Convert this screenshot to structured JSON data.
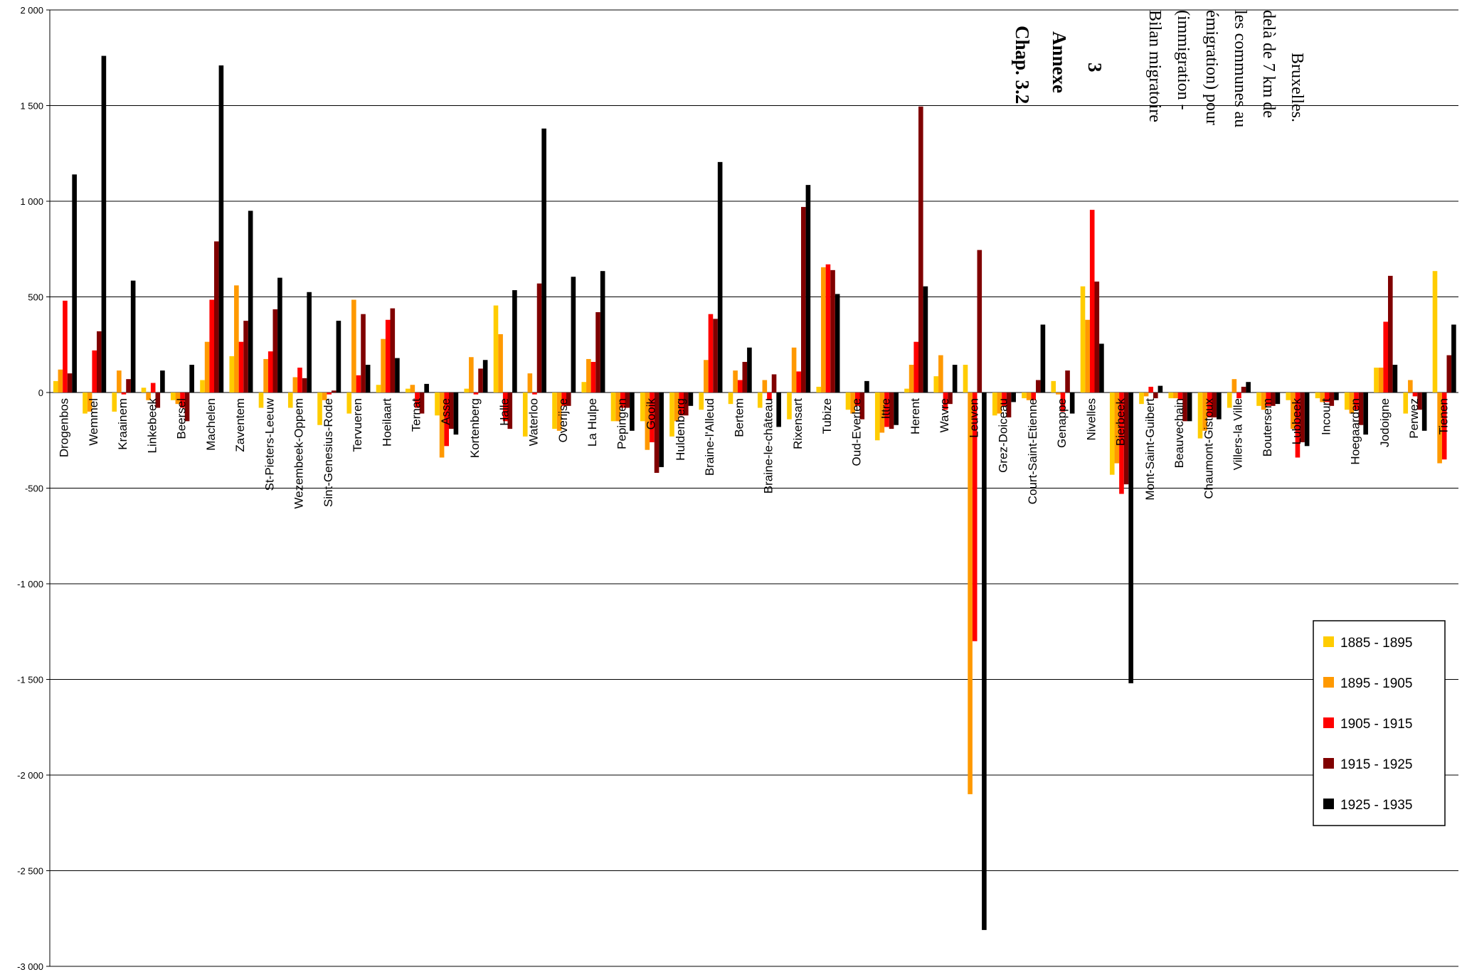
{
  "chart_data": {
    "type": "bar",
    "title_lines": [
      "Chap. 3.2",
      "Annexe",
      "3"
    ],
    "subtitle_lines": [
      "Bilan migratoire",
      "(immigration -",
      "émigration) pour",
      "les communes au",
      "delà de 7 km de",
      "Bruxelles."
    ],
    "xlabel": "",
    "ylabel": "",
    "ylim": [
      -3000,
      2000
    ],
    "yticks": [
      2000,
      1500,
      1000,
      500,
      0,
      -500,
      -1000,
      -1500,
      -2000,
      -2500,
      -3000
    ],
    "ytick_labels": [
      "2 000",
      "1 500",
      "1 000",
      "500",
      "0",
      "-500",
      "-1 000",
      "-1 500",
      "-2 000",
      "-2 500",
      "-3 000"
    ],
    "grid": true,
    "legend_position": "right",
    "colors": [
      "#FFCC00",
      "#FF9900",
      "#FF0000",
      "#800000",
      "#000000"
    ],
    "categories": [
      "Drogenbos",
      "Wemmel",
      "Kraainem",
      "Linkebeek",
      "Beersel",
      "Machelen",
      "Zaventem",
      "St-Pieters-Leeuw",
      "Wezembeek-Oppem",
      "Sint-Genesius-Rode",
      "Tervueren",
      "Hoeilaart",
      "Ternat",
      "Asse",
      "Kortenberg",
      "Halle",
      "Waterloo",
      "Overijse",
      "La Hulpe",
      "Pepingen",
      "Gooik",
      "Huldenberg",
      "Braine-l'Alleud",
      "Bertem",
      "Braine-le-château",
      "Rixensart",
      "Tubize",
      "Oud-Everlee",
      "Ittre",
      "Herent",
      "Wavre",
      "Leuven",
      "Grez-Doiceau",
      "Court-Saint-Etienne",
      "Genappe",
      "Nivelles",
      "Bierbeek",
      "Mont-Saint-Guibert",
      "Beauvechain",
      "Chaumont-Gistoux",
      "Villers-la Ville",
      "Boutersem",
      "Lubbeek",
      "Incourt",
      "Hoegaarden",
      "Jodoigne",
      "Perwez",
      "Tienen"
    ],
    "series": [
      {
        "name": "1885 - 1895",
        "values": [
          60,
          -110,
          -100,
          25,
          -40,
          65,
          190,
          -80,
          -80,
          -170,
          -110,
          40,
          20,
          -120,
          20,
          455,
          -230,
          -190,
          55,
          -150,
          -150,
          -230,
          -90,
          -60,
          -80,
          -140,
          30,
          -90,
          -250,
          20,
          85,
          145,
          -120,
          -30,
          60,
          555,
          -430,
          -60,
          -30,
          -240,
          -80,
          -70,
          -40,
          -30,
          -90,
          130,
          -110,
          635
        ]
      },
      {
        "name": "1895 - 1905",
        "values": [
          120,
          -100,
          115,
          -40,
          -60,
          265,
          560,
          175,
          80,
          -40,
          485,
          280,
          40,
          -340,
          185,
          305,
          100,
          -200,
          175,
          -150,
          -300,
          -150,
          170,
          115,
          65,
          235,
          655,
          -110,
          -210,
          145,
          195,
          -2100,
          -110,
          -40,
          -10,
          380,
          -370,
          -20,
          -30,
          -200,
          70,
          -90,
          -190,
          -50,
          -110,
          130,
          65,
          -370
        ]
      },
      {
        "name": "1905 - 1915",
        "values": [
          480,
          220,
          -10,
          50,
          -80,
          485,
          265,
          215,
          130,
          -10,
          90,
          380,
          -80,
          -280,
          -10,
          -150,
          -10,
          -70,
          160,
          -80,
          -260,
          -120,
          410,
          65,
          -40,
          110,
          670,
          -70,
          -180,
          265,
          -90,
          -1300,
          -70,
          -40,
          -100,
          955,
          -530,
          30,
          -40,
          -130,
          -30,
          -70,
          -340,
          -50,
          -90,
          370,
          -20,
          -350
        ]
      },
      {
        "name": "1915 - 1925",
        "values": [
          100,
          320,
          70,
          -80,
          -150,
          790,
          375,
          435,
          75,
          10,
          410,
          440,
          -110,
          -190,
          125,
          -190,
          570,
          -70,
          420,
          -80,
          -420,
          -120,
          385,
          160,
          95,
          970,
          640,
          -140,
          -190,
          1495,
          -60,
          745,
          -130,
          65,
          115,
          580,
          -480,
          -30,
          -150,
          -130,
          30,
          -70,
          -260,
          -70,
          -170,
          610,
          -90,
          195
        ]
      },
      {
        "name": "1925 - 1935",
        "values": [
          1140,
          1760,
          585,
          115,
          145,
          1710,
          950,
          600,
          525,
          375,
          145,
          180,
          45,
          -220,
          170,
          535,
          1380,
          605,
          635,
          -200,
          -390,
          -70,
          1205,
          235,
          -180,
          1085,
          515,
          60,
          -170,
          555,
          145,
          -2810,
          -50,
          355,
          -110,
          255,
          -1520,
          35,
          -150,
          -140,
          55,
          -60,
          -280,
          -40,
          -220,
          145,
          -200,
          355
        ]
      }
    ]
  }
}
